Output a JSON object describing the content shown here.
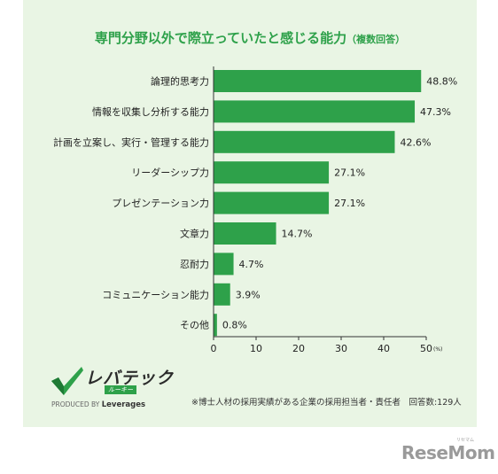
{
  "title": "専門分野以外で際立っていたと感じる能力",
  "title_sub": "（複数回答）",
  "chart_data": {
    "type": "bar",
    "orientation": "horizontal",
    "categories": [
      "論理的思考力",
      "情報を収集し分析する能力",
      "計画を立案し、実行・管理する能力",
      "リーダーシップ力",
      "プレゼンテーション力",
      "文章力",
      "忍耐力",
      "コミュニケーション能力",
      "その他"
    ],
    "values": [
      48.8,
      47.3,
      42.6,
      27.1,
      27.1,
      14.7,
      4.7,
      3.9,
      0.8
    ],
    "value_labels": [
      "48.8%",
      "47.3%",
      "42.6%",
      "27.1%",
      "27.1%",
      "14.7%",
      "4.7%",
      "3.9%",
      "0.8%"
    ],
    "xlim": [
      0,
      50
    ],
    "xticks": [
      0,
      10,
      20,
      30,
      40,
      50
    ],
    "xtick_labels": [
      "0",
      "10",
      "20",
      "30",
      "40",
      "50"
    ],
    "x_unit": "(%)",
    "grid": false,
    "bar_color": "#2ea14a"
  },
  "logo": {
    "name": "レバテック",
    "sub": "ルーキー",
    "produced_by": "PRODUCED BY",
    "company": "Leverages"
  },
  "footnote": "※博士人材の採用実績がある企業の採用担当者・責任者　回答数:129人",
  "watermark": {
    "text": "ReseMom",
    "ruby": "リセマム"
  },
  "colors": {
    "panel_bg": "#e9f5e4",
    "accent": "#2ea14a"
  }
}
